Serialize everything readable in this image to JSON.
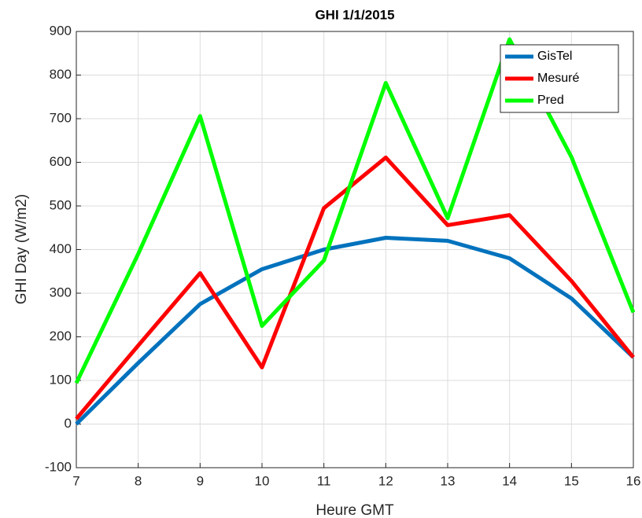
{
  "chart_data": {
    "type": "line",
    "title": "GHI 1/1/2015",
    "xlabel": "Heure GMT",
    "ylabel": "GHI Day (W/m2)",
    "x": [
      7,
      8,
      9,
      10,
      11,
      12,
      13,
      14,
      15,
      16
    ],
    "series": [
      {
        "name": "GisTel",
        "color": "#0072bd",
        "values": [
          0,
          140,
          275,
          355,
          400,
          427,
          420,
          380,
          288,
          153
        ]
      },
      {
        "name": "Mesuré",
        "color": "#ff0000",
        "values": [
          12,
          180,
          346,
          130,
          495,
          611,
          456,
          479,
          328,
          153
        ]
      },
      {
        "name": "Pred",
        "color": "#00ff00",
        "values": [
          94,
          390,
          706,
          225,
          375,
          782,
          472,
          882,
          612,
          256
        ]
      }
    ],
    "xlim": [
      7,
      16
    ],
    "xticks": [
      7,
      8,
      9,
      10,
      11,
      12,
      13,
      14,
      15,
      16
    ],
    "ylim": [
      -100,
      900
    ],
    "yticks": [
      -100,
      0,
      100,
      200,
      300,
      400,
      500,
      600,
      700,
      800,
      900
    ],
    "grid": true,
    "legend": "top-right"
  }
}
